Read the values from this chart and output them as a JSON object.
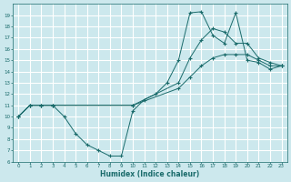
{
  "title": "",
  "xlabel": "Humidex (Indice chaleur)",
  "bg_color": "#cce8ed",
  "grid_color": "#ffffff",
  "line_color": "#1a6b6b",
  "xlim": [
    -0.5,
    23.5
  ],
  "ylim": [
    6,
    20
  ],
  "xticks": [
    0,
    1,
    2,
    3,
    4,
    5,
    6,
    7,
    8,
    9,
    10,
    11,
    12,
    13,
    14,
    15,
    16,
    17,
    18,
    19,
    20,
    21,
    22,
    23
  ],
  "yticks": [
    6,
    7,
    8,
    9,
    10,
    11,
    12,
    13,
    14,
    15,
    16,
    17,
    18,
    19
  ],
  "line1_x": [
    0,
    1,
    2,
    3,
    4,
    5,
    6,
    7,
    8,
    9,
    10,
    11,
    12,
    13,
    14,
    15,
    16,
    17,
    18,
    19,
    20,
    21,
    22,
    23
  ],
  "line1_y": [
    10,
    11,
    11,
    11,
    10,
    8.5,
    7.5,
    7,
    6.5,
    6.5,
    10.5,
    11.5,
    12,
    13,
    15,
    19.2,
    19.3,
    17.2,
    16.5,
    19.2,
    15,
    14.8,
    14.2,
    14.5
  ],
  "line2_x": [
    0,
    1,
    2,
    3,
    10,
    14,
    15,
    16,
    17,
    18,
    19,
    20,
    21,
    22,
    23
  ],
  "line2_y": [
    10,
    11,
    11,
    11,
    11,
    13,
    15.2,
    16.8,
    17.8,
    17.5,
    16.5,
    16.5,
    15.2,
    14.8,
    14.5
  ],
  "line3_x": [
    0,
    1,
    2,
    3,
    10,
    14,
    15,
    16,
    17,
    18,
    19,
    20,
    21,
    22,
    23
  ],
  "line3_y": [
    10,
    11,
    11,
    11,
    11,
    12.5,
    13.5,
    14.5,
    15.2,
    15.5,
    15.5,
    15.5,
    15.0,
    14.5,
    14.5
  ]
}
